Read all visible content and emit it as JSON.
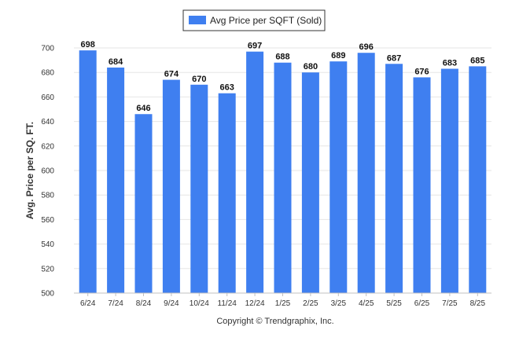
{
  "chart_data": {
    "type": "bar",
    "categories": [
      "6/24",
      "7/24",
      "8/24",
      "9/24",
      "10/24",
      "11/24",
      "12/24",
      "1/25",
      "2/25",
      "3/25",
      "4/25",
      "5/25",
      "6/25",
      "7/25",
      "8/25"
    ],
    "series": [
      {
        "name": "Avg Price per SQFT (Sold)",
        "values": [
          698,
          684,
          646,
          674,
          670,
          663,
          697,
          688,
          680,
          689,
          696,
          687,
          676,
          683,
          685
        ]
      }
    ],
    "ylabel": "Avg. Price per SQ. FT.",
    "xlabel": "",
    "ylim": [
      500,
      700
    ],
    "yticks": [
      500,
      520,
      540,
      560,
      580,
      600,
      620,
      640,
      660,
      680,
      700
    ],
    "grid": true,
    "legend": "top-center",
    "bar_color": "#3f7ff0",
    "data_labels": true
  },
  "footer": {
    "credit": "Copyright © Trendgraphix, Inc."
  }
}
